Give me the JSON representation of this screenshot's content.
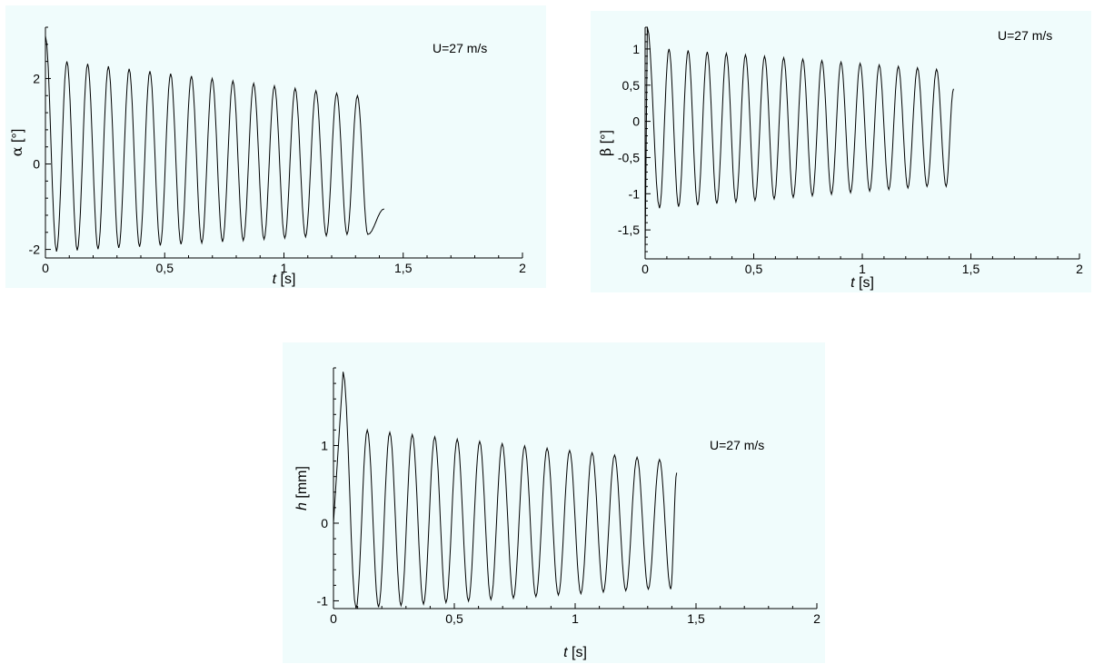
{
  "chart_data": [
    {
      "id": "alpha",
      "type": "line",
      "annotation": "U=27 m/s",
      "xlabel": {
        "symbol": "t",
        "unit": " [s]"
      },
      "ylabel": {
        "symbol": "α",
        "unit": " [°]"
      },
      "xlim": [
        0,
        2
      ],
      "ylim": [
        -2.2,
        3.2
      ],
      "xticks": [
        0,
        0.5,
        1,
        1.5,
        2
      ],
      "xtick_labels": [
        "0",
        "0,5",
        "1",
        "1,5",
        "2"
      ],
      "yticks": [
        -2,
        0,
        2
      ],
      "ytick_labels": [
        "-2",
        "0",
        "2"
      ],
      "series": [
        {
          "signal": {
            "start_value": 3.0,
            "first_peak_t": 0.09,
            "period": 0.087,
            "cycles": 15,
            "peak_first": 2.4,
            "peak_last": 1.6,
            "trough_first": -2.05,
            "trough_last": -1.65,
            "t_end": 1.42,
            "end_value": -1.05
          }
        }
      ]
    },
    {
      "id": "beta",
      "type": "line",
      "annotation": "U=27 m/s",
      "xlabel": {
        "symbol": "t",
        "unit": " [s]"
      },
      "ylabel": {
        "symbol": "β",
        "unit": " [°]"
      },
      "xlim": [
        0,
        2
      ],
      "ylim": [
        -1.9,
        1.3
      ],
      "xticks": [
        0,
        0.5,
        1,
        1.5,
        2
      ],
      "xtick_labels": [
        "0",
        "0,5",
        "1",
        "1,5",
        "2"
      ],
      "yticks": [
        -1.5,
        -1,
        -0.5,
        0,
        0.5,
        1
      ],
      "ytick_labels": [
        "-1,5",
        "-1",
        "-0,5",
        "0",
        "0,5",
        "1"
      ],
      "series": [
        {
          "signal": {
            "start_value": -1.8,
            "pre_spike": 1.3,
            "first_peak_t": 0.11,
            "period": 0.088,
            "cycles": 15,
            "peak_first": 1.0,
            "peak_last": 0.72,
            "trough_first": -1.2,
            "trough_last": -0.9,
            "t_end": 1.42,
            "end_value": 0.45
          }
        }
      ]
    },
    {
      "id": "h",
      "type": "line",
      "annotation": "U=27 m/s",
      "xlabel": {
        "symbol": "t",
        "unit": " [s]"
      },
      "ylabel": {
        "symbol": "h",
        "unit": " [mm]"
      },
      "xlim": [
        0,
        2
      ],
      "ylim": [
        -1.1,
        2.0
      ],
      "xticks": [
        0,
        0.5,
        1,
        1.5,
        2
      ],
      "xtick_labels": [
        "0",
        "0,5",
        "1",
        "1,5",
        "2"
      ],
      "yticks": [
        -1,
        0,
        1
      ],
      "ytick_labels": [
        "-1",
        "0",
        "1"
      ],
      "series": [
        {
          "signal": {
            "start_value": 0.0,
            "first_peak_t": 0.04,
            "first_peak_value": 1.95,
            "second_peak_t": 0.14,
            "period": 0.093,
            "cycles": 14,
            "peak_first": 1.2,
            "peak_last": 0.82,
            "trough_first": -1.1,
            "trough_last": -0.85,
            "t_end": 1.42,
            "end_value": 0.65
          }
        }
      ]
    }
  ]
}
